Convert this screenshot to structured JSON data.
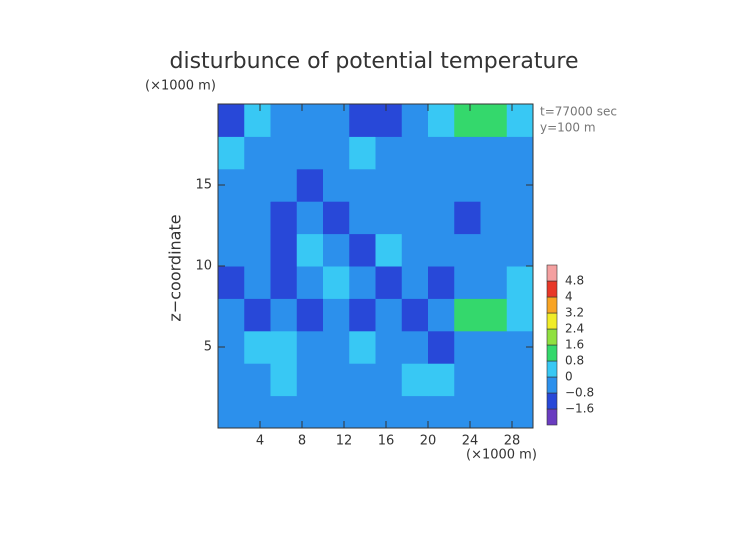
{
  "chart_data": {
    "type": "contour",
    "title": "disturbunce of potential temperature",
    "y_unit": "(×1000 m)",
    "x_unit": "(×1000 m)",
    "y_label": "z−coordinate",
    "annotations": [
      "t=77000 sec",
      "y=100 m"
    ],
    "xlim": [
      0,
      30
    ],
    "ylim": [
      0,
      20
    ],
    "xticks": [
      4,
      8,
      12,
      16,
      20,
      24,
      28
    ],
    "yticks": [
      5,
      10,
      15
    ],
    "x": [
      1.25,
      3.75,
      6.25,
      8.75,
      11.25,
      13.75,
      16.25,
      18.75,
      21.25,
      23.75,
      26.25,
      28.75
    ],
    "y": [
      1,
      3,
      5,
      7,
      9,
      11,
      13,
      15,
      17,
      19
    ],
    "z": [
      [
        -0.3,
        -0.3,
        -0.3,
        -0.3,
        -0.3,
        -0.3,
        -0.3,
        -0.3,
        -0.3,
        -0.3,
        -0.3,
        -0.3
      ],
      [
        -0.3,
        -0.3,
        0.2,
        -0.3,
        -0.3,
        -0.3,
        -0.3,
        0.2,
        0.2,
        -0.3,
        -0.3,
        -0.3
      ],
      [
        -0.3,
        0.2,
        0.2,
        -0.3,
        -0.3,
        0.2,
        -0.3,
        -0.3,
        -1.0,
        -0.3,
        -0.3,
        -0.3
      ],
      [
        -0.3,
        -1.0,
        -0.3,
        -1.0,
        -0.3,
        -1.0,
        -0.3,
        -1.0,
        -0.3,
        0.9,
        1.2,
        0.2
      ],
      [
        -1.0,
        -0.3,
        -1.0,
        -0.3,
        0.2,
        -0.3,
        -1.0,
        -0.3,
        -1.0,
        -0.3,
        -0.3,
        0.2
      ],
      [
        -0.3,
        -0.3,
        -1.0,
        0.2,
        -0.3,
        -1.0,
        0.2,
        -0.3,
        -0.3,
        -0.3,
        -0.3,
        -0.3
      ],
      [
        -0.3,
        -0.3,
        -1.0,
        -0.3,
        -1.0,
        -0.3,
        -0.3,
        -0.3,
        -0.3,
        -1.0,
        -0.3,
        -0.3
      ],
      [
        -0.3,
        -0.3,
        -0.3,
        -1.0,
        -0.3,
        -0.3,
        -0.3,
        -0.3,
        -0.3,
        -0.3,
        -0.3,
        -0.3
      ],
      [
        0.2,
        -0.3,
        -0.3,
        -0.3,
        -0.3,
        0.2,
        -0.3,
        -0.3,
        -0.3,
        -0.3,
        -0.3,
        -0.3
      ],
      [
        -1.0,
        0.2,
        -0.3,
        -0.3,
        -0.3,
        -1.0,
        -1.0,
        -0.3,
        0.2,
        0.9,
        0.9,
        0.2
      ]
    ],
    "colorbar": {
      "ticks": [
        {
          "value": -1.6,
          "label": "−1.6"
        },
        {
          "value": -0.8,
          "label": "−0.8"
        },
        0,
        0.8,
        1.6,
        2.4,
        3.2,
        4,
        4.8
      ],
      "colors": [
        "#6a3cc0",
        "#2848d8",
        "#2c90ec",
        "#38c8f4",
        "#34d86c",
        "#90e040",
        "#f0ec28",
        "#f8a424",
        "#e83828",
        "#f4a0a0"
      ]
    }
  }
}
